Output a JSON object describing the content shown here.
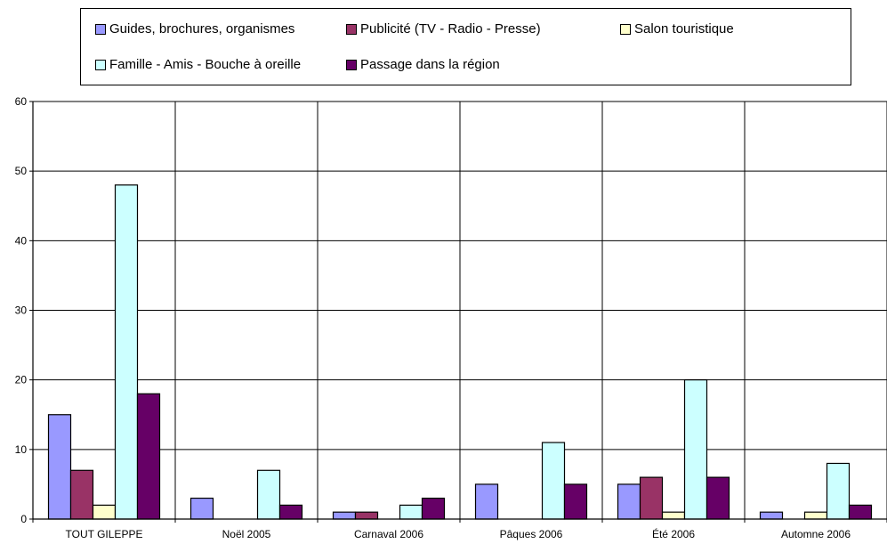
{
  "chart_data": {
    "type": "bar",
    "categories": [
      "TOUT GILEPPE",
      "Noël 2005",
      "Carnaval 2006",
      "Pâques 2006",
      "Été 2006",
      "Automne 2006"
    ],
    "series": [
      {
        "name": "Guides, brochures, organismes",
        "color": "#9999FF",
        "values": [
          15,
          3,
          1,
          5,
          5,
          1
        ]
      },
      {
        "name": "Publicité (TV - Radio - Presse)",
        "color": "#993366",
        "values": [
          7,
          0,
          1,
          0,
          6,
          0
        ]
      },
      {
        "name": "Salon touristique",
        "color": "#FFFFCC",
        "values": [
          2,
          0,
          0,
          0,
          1,
          1
        ]
      },
      {
        "name": "Famille - Amis - Bouche à oreille",
        "color": "#CCFFFF",
        "values": [
          48,
          7,
          2,
          11,
          20,
          8
        ]
      },
      {
        "name": "Passage dans la région",
        "color": "#660066",
        "values": [
          18,
          2,
          3,
          5,
          6,
          2
        ]
      }
    ],
    "yticks": [
      "0",
      "10",
      "20",
      "30",
      "40",
      "50",
      "60"
    ],
    "ylim": [
      0,
      60
    ],
    "grid": true,
    "legend_position": "top"
  }
}
